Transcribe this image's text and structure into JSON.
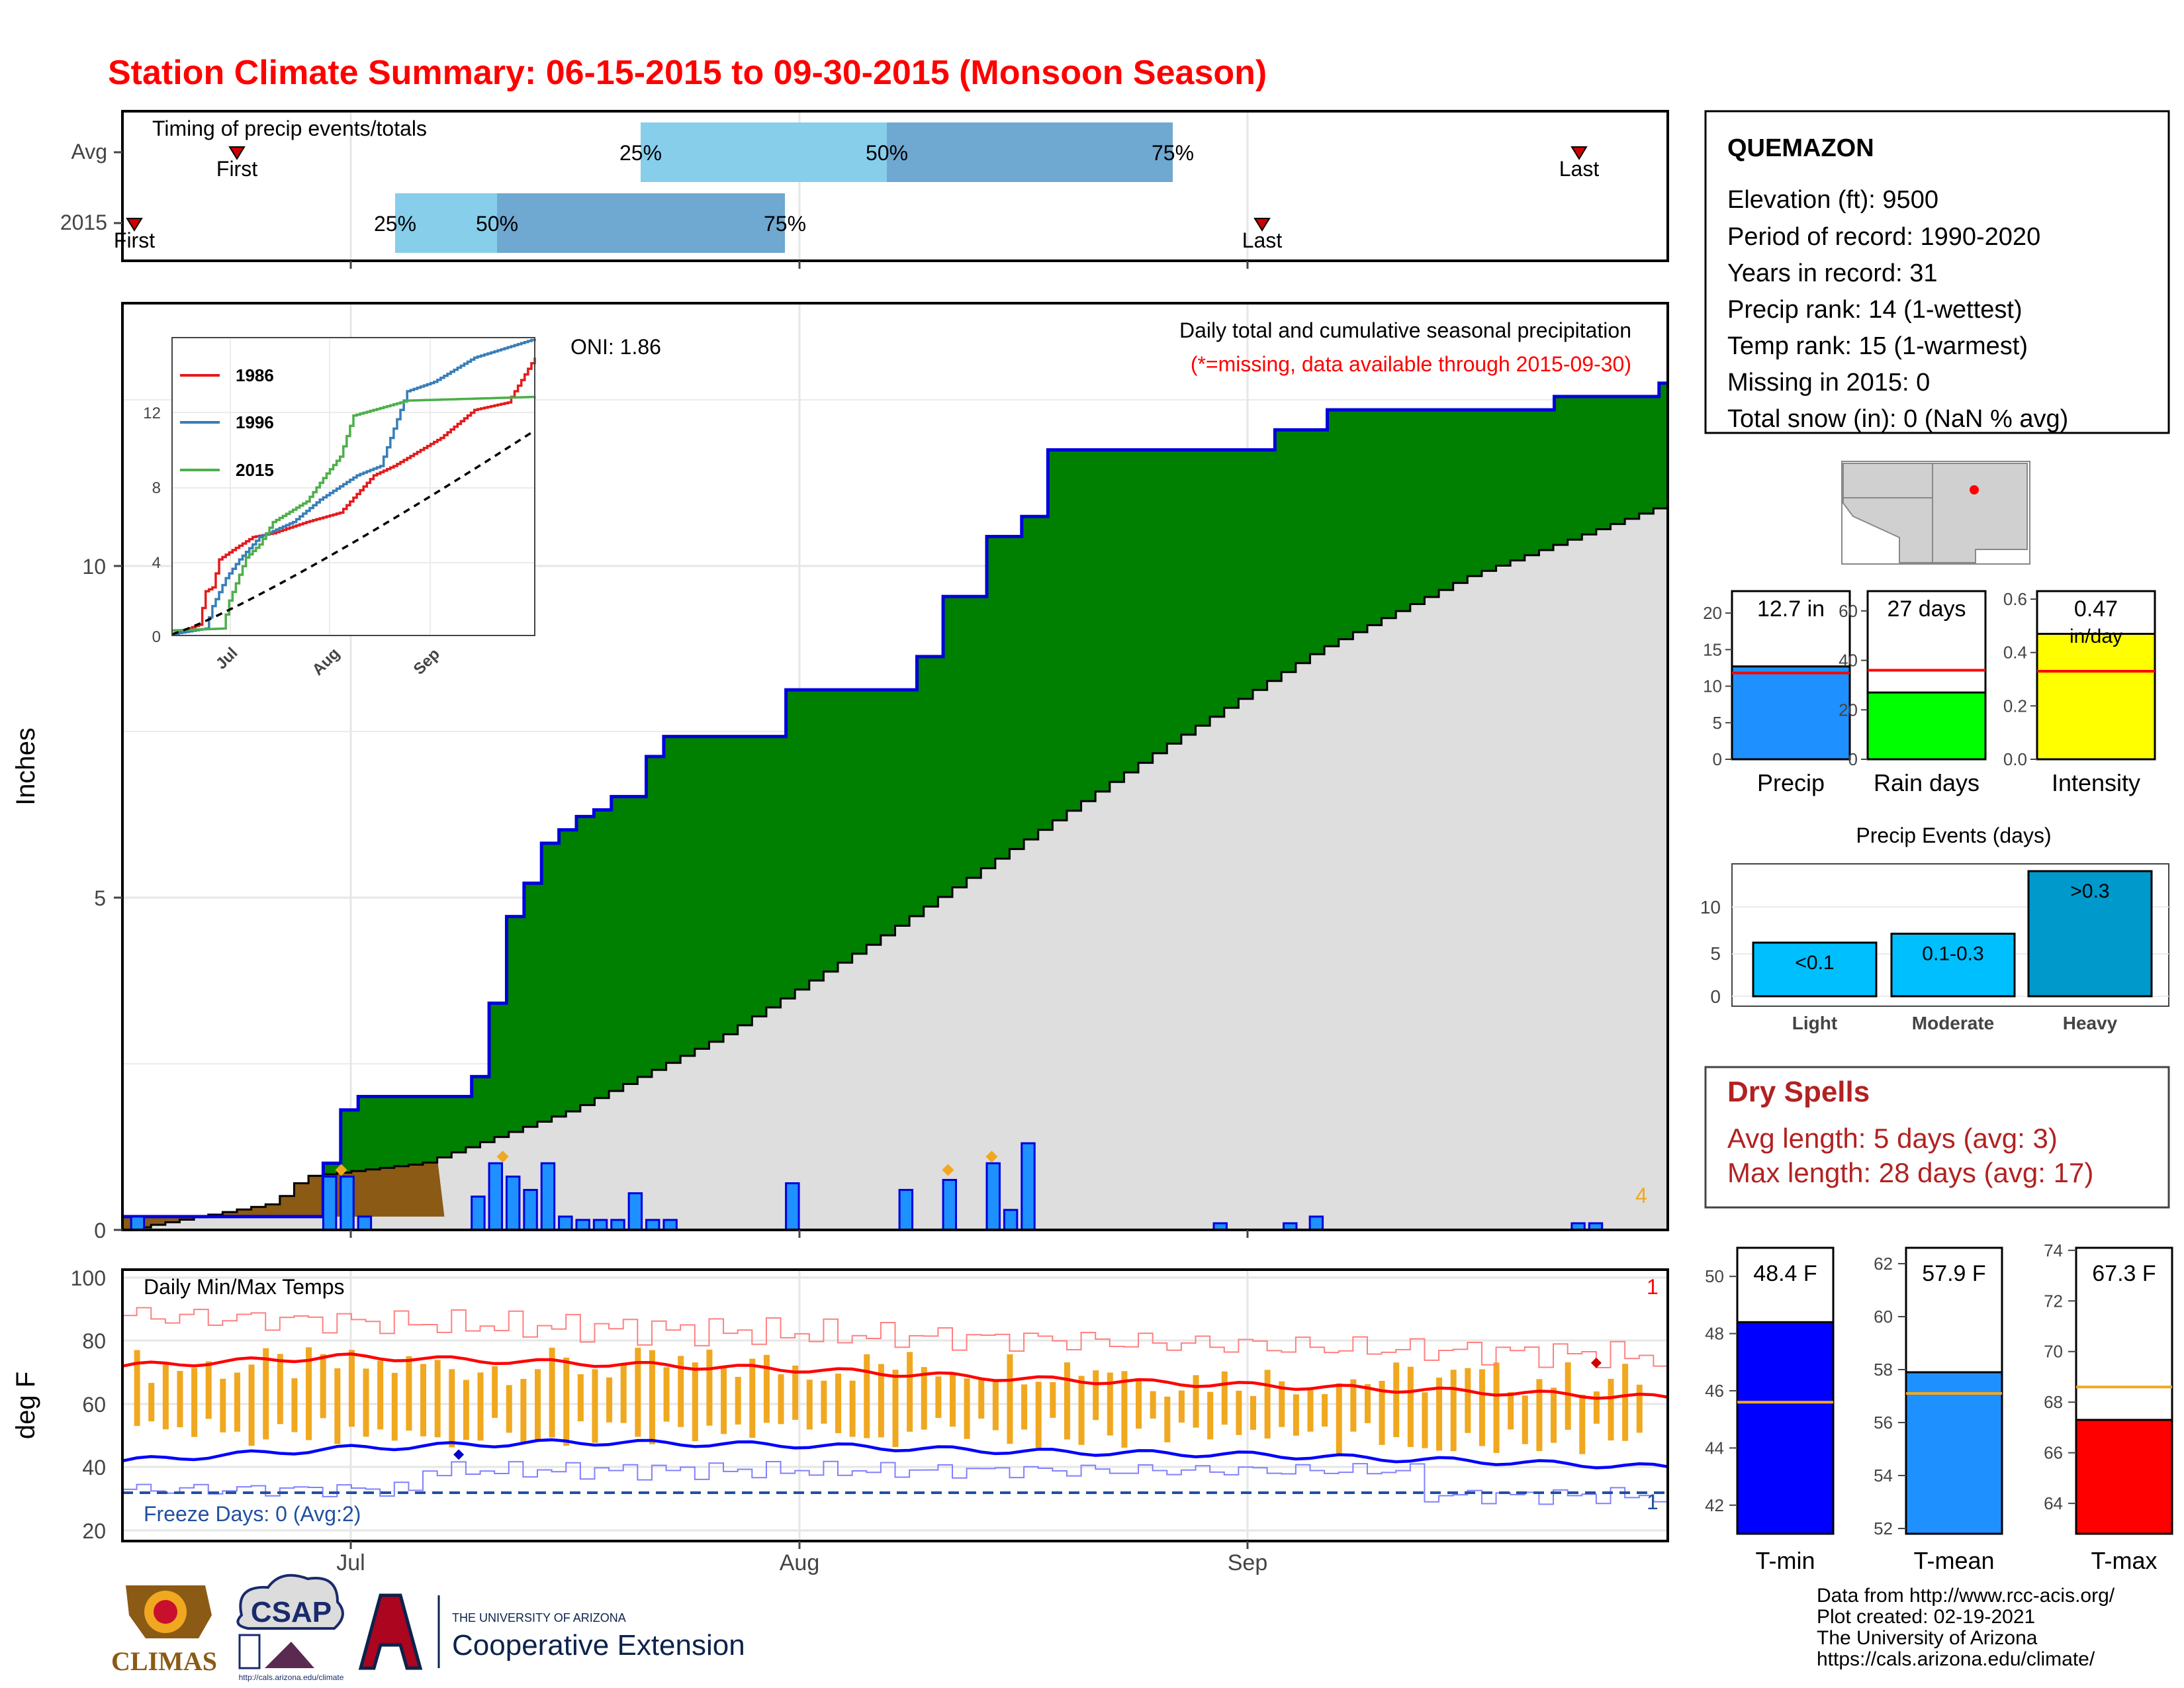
{
  "title": "Station Climate Summary: 06-15-2015 to 09-30-2015 (Monsoon Season)",
  "colors": {
    "title": "#ff0000",
    "green_fill": "#008000",
    "blue_line": "#0000dd",
    "gray_fill": "#dedede",
    "brown_fill": "#8b5a14",
    "bar_blue": "#1e90ff",
    "light_blue": "#87ceeb",
    "mid_blue": "#6fa8d0",
    "orange": "#f0a820",
    "tmax_red": "#ff0000",
    "tmin_blue": "#0000ff",
    "dry_red": "#b22222"
  },
  "timing": {
    "title": "Timing of precip events/totals",
    "rows": [
      "Avg",
      "2015"
    ],
    "avg": {
      "first": "First",
      "last": "Last",
      "p25": "25%",
      "p50": "50%",
      "p75": "75%"
    },
    "y2015": {
      "first": "First",
      "last": "Last",
      "p25": "25%",
      "p50": "50%",
      "p75": "75%"
    }
  },
  "precip_panel": {
    "ylabel": "Inches",
    "yticks": [
      "0",
      "5",
      "10"
    ],
    "header": "Daily total and cumulative seasonal precipitation",
    "subheader": "(*=missing, data available through 2015-09-30)",
    "oni": "ONI: 1.86",
    "corner_count": "4"
  },
  "inset": {
    "yticks": [
      "0",
      "4",
      "8",
      "12"
    ],
    "xticks": [
      "Jul",
      "Aug",
      "Sep"
    ],
    "legend": [
      "1986",
      "1996",
      "2015"
    ]
  },
  "temp_panel": {
    "ylabel": "deg F",
    "title": "Daily Min/Max Temps",
    "freeze": "Freeze Days: 0 (Avg:2)",
    "yticks": [
      "20",
      "40",
      "60",
      "80",
      "100"
    ],
    "count_top": "1",
    "count_bottom": "1"
  },
  "xticks": [
    "Jul",
    "Aug",
    "Sep"
  ],
  "station": {
    "name": "QUEMAZON",
    "lines": [
      "Elevation (ft): 9500",
      "Period of record: 1990-2020",
      "Years in record: 31",
      "Precip rank: 14 (1-wettest)",
      "Temp rank: 15 (1-warmest)",
      "Missing in 2015: 0",
      "Total snow (in): 0 (NaN % avg)"
    ]
  },
  "summary_bars": [
    {
      "label": "Precip",
      "value_text": "12.7 in",
      "value": 12.7,
      "avg": 11.8,
      "max": 23,
      "yticks": [
        "0",
        "5",
        "10",
        "15",
        "20"
      ],
      "color": "#1e90ff"
    },
    {
      "label": "Rain days",
      "value_text": "27 days",
      "value": 27,
      "avg": 36,
      "max": 68,
      "yticks": [
        "0",
        "20",
        "40",
        "60"
      ],
      "color": "#00ff00"
    },
    {
      "label": "Intensity",
      "value_text": "0.47",
      "sub_text": "in/day",
      "value": 0.47,
      "avg": 0.33,
      "max": 0.63,
      "yticks": [
        "0.0",
        "0.2",
        "0.4",
        "0.6"
      ],
      "color": "#ffff00"
    }
  ],
  "precip_events": {
    "title": "Precip Events (days)",
    "yticks": [
      "0",
      "5",
      "10"
    ],
    "bars": [
      {
        "category": "Light",
        "label": "<0.1",
        "value": 6
      },
      {
        "category": "Moderate",
        "label": "0.1-0.3",
        "value": 7
      },
      {
        "category": "Heavy",
        "label": ">0.3",
        "value": 14
      }
    ]
  },
  "dry_spells": {
    "title": "Dry Spells",
    "avg": "Avg length: 5 days (avg: 3)",
    "max": "Max length: 28 days (avg: 17)"
  },
  "temp_bars": [
    {
      "label": "T-min",
      "value_text": "48.4 F",
      "value": 48.4,
      "avg": 45.6,
      "ymin": 41,
      "ymax": 51,
      "yticks": [
        "42",
        "44",
        "46",
        "48",
        "50"
      ],
      "color": "#0000ff"
    },
    {
      "label": "T-mean",
      "value_text": "57.9 F",
      "value": 57.9,
      "avg": 57.1,
      "ymin": 51.8,
      "ymax": 62.6,
      "yticks": [
        "52",
        "54",
        "56",
        "58",
        "60",
        "62"
      ],
      "color": "#1e90ff"
    },
    {
      "label": "T-max",
      "value_text": "67.3 F",
      "value": 67.3,
      "avg": 68.6,
      "ymin": 62.8,
      "ymax": 74.1,
      "yticks": [
        "64",
        "66",
        "68",
        "70",
        "72",
        "74"
      ],
      "color": "#ff0000"
    }
  ],
  "footer": {
    "lines": [
      "Data from http://www.rcc-acis.org/",
      "Plot created: 02-19-2021",
      "The University of Arizona",
      "https://cals.arizona.edu/climate/"
    ],
    "climas": "CLIMAS",
    "csap": "CSAP",
    "csap_url": "http://cals.arizona.edu/climate",
    "ua_small": "THE UNIVERSITY OF ARIZONA",
    "ua_big": "Cooperative Extension"
  },
  "chart_data": [
    {
      "type": "area",
      "title": "Daily total and cumulative seasonal precipitation",
      "ylabel": "Inches",
      "ylim": [
        0,
        13.9
      ],
      "x_start": "2015-06-15",
      "x_end": "2015-09-30",
      "cumulative_2015": [
        [
          0,
          0.2
        ],
        [
          23,
          1.0
        ],
        [
          25,
          1.8
        ],
        [
          27,
          2.0
        ],
        [
          40,
          2.3
        ],
        [
          42,
          3.4
        ],
        [
          44,
          4.7
        ],
        [
          46,
          5.2
        ],
        [
          48,
          5.8
        ],
        [
          50,
          6.0
        ],
        [
          52,
          6.2
        ],
        [
          54,
          6.3
        ],
        [
          56,
          6.5
        ],
        [
          60,
          7.1
        ],
        [
          62,
          7.4
        ],
        [
          76,
          8.1
        ],
        [
          91,
          8.6
        ],
        [
          94,
          9.5
        ],
        [
          99,
          10.4
        ],
        [
          103,
          10.7
        ],
        [
          106,
          11.7
        ],
        [
          132,
          12.0
        ],
        [
          138,
          12.3
        ],
        [
          164,
          12.5
        ],
        [
          176,
          12.7
        ]
      ],
      "cumulative_average": [
        [
          0,
          0
        ],
        [
          20,
          0.4
        ],
        [
          24,
          0.8
        ],
        [
          40,
          1.0
        ],
        [
          60,
          1.8
        ],
        [
          80,
          2.9
        ],
        [
          100,
          4.3
        ],
        [
          120,
          5.8
        ],
        [
          140,
          7.3
        ],
        [
          160,
          8.7
        ],
        [
          180,
          9.8
        ],
        [
          207,
          10.9
        ]
      ],
      "daily_precip": [
        [
          1,
          0.2
        ],
        [
          23,
          0.8
        ],
        [
          25,
          0.8
        ],
        [
          27,
          0.2
        ],
        [
          40,
          0.5
        ],
        [
          42,
          1.0
        ],
        [
          44,
          0.8
        ],
        [
          46,
          0.6
        ],
        [
          48,
          1.0
        ],
        [
          50,
          0.2
        ],
        [
          52,
          0.15
        ],
        [
          54,
          0.15
        ],
        [
          56,
          0.15
        ],
        [
          58,
          0.55
        ],
        [
          60,
          0.15
        ],
        [
          62,
          0.15
        ],
        [
          76,
          0.7
        ],
        [
          89,
          0.6
        ],
        [
          94,
          0.75
        ],
        [
          99,
          1.0
        ],
        [
          101,
          0.3
        ],
        [
          103,
          1.3
        ],
        [
          125,
          0.1
        ],
        [
          133,
          0.1
        ],
        [
          136,
          0.2
        ],
        [
          166,
          0.1
        ],
        [
          168,
          0.1
        ]
      ]
    },
    {
      "type": "line",
      "title": "Daily Min/Max Temps",
      "ylabel": "deg F",
      "ylim": [
        17,
        103
      ],
      "series": [
        {
          "name": "Avg max",
          "points": [
            [
              0,
              72
            ],
            [
              30,
              75
            ],
            [
              60,
              73
            ],
            [
              90,
              71
            ],
            [
              120,
              68
            ],
            [
              150,
              66
            ],
            [
              180,
              64
            ],
            [
              207,
              62
            ]
          ]
        },
        {
          "name": "Avg min",
          "points": [
            [
              0,
              42
            ],
            [
              30,
              46
            ],
            [
              60,
              48
            ],
            [
              90,
              47
            ],
            [
              120,
              45
            ],
            [
              150,
              44
            ],
            [
              180,
              42
            ],
            [
              207,
              40
            ]
          ]
        }
      ]
    }
  ]
}
